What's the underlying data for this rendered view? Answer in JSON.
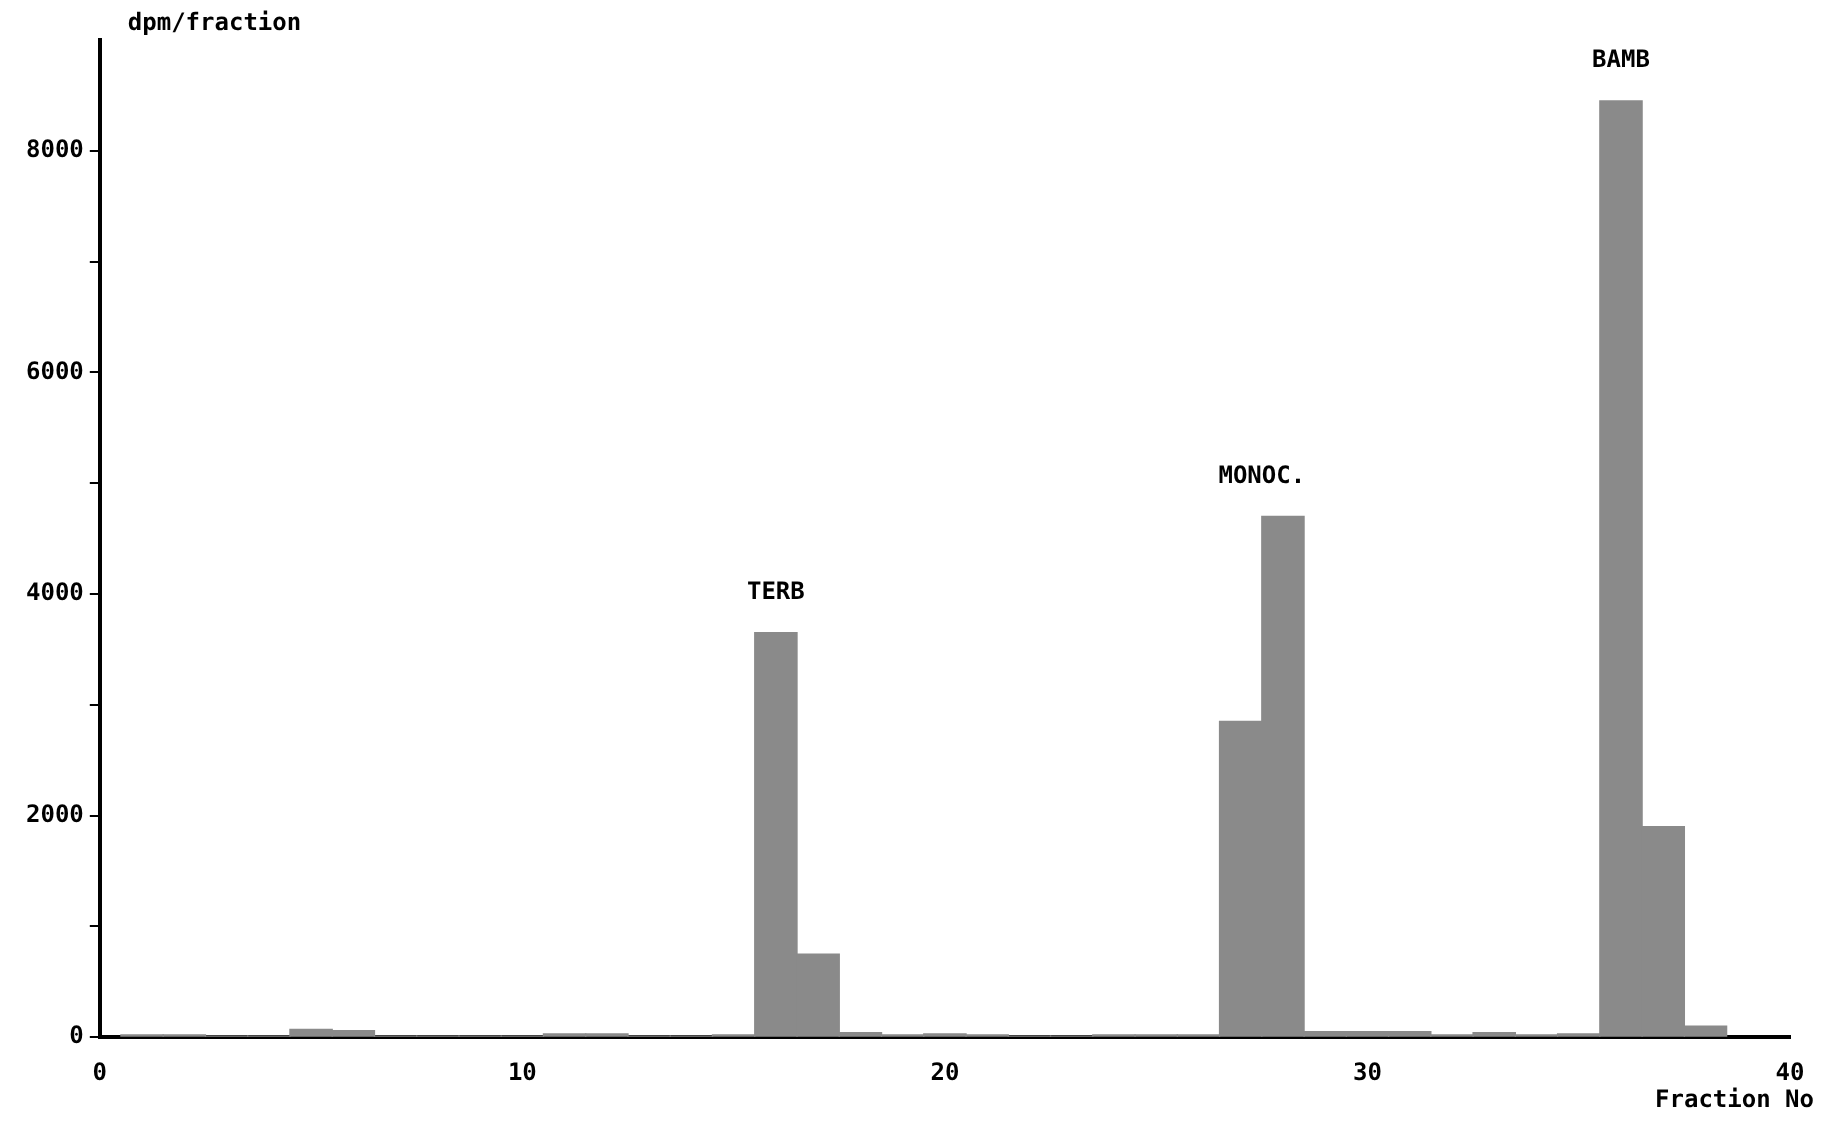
{
  "chart_data": {
    "type": "histogram",
    "ylabel": "dpm/fraction",
    "xlabel": "Fraction No",
    "bins": [
      0.5,
      1.5,
      2.5,
      3.5,
      4.5,
      5.5,
      6.5,
      7.5,
      8.5,
      9.5,
      10.5,
      11.5,
      12.5,
      13.5,
      14.5,
      15.5,
      16.5,
      17.5,
      18.5,
      19.5,
      20.5,
      21.5,
      22.5,
      23.5,
      24.5,
      25.5,
      26.5,
      27.5,
      28.5,
      29.5,
      30.5,
      31.5,
      32.5,
      33.5,
      34.5,
      35.5,
      36.5,
      37.5,
      38.5
    ],
    "values": [
      20,
      20,
      10,
      10,
      70,
      60,
      10,
      10,
      10,
      10,
      30,
      30,
      10,
      10,
      20,
      3650,
      750,
      40,
      20,
      30,
      20,
      10,
      10,
      20,
      20,
      20,
      2850,
      4700,
      50,
      50,
      50,
      20,
      40,
      20,
      30,
      8450,
      1900,
      100
    ],
    "color": "#8a8a8a",
    "xlim": [
      0,
      40
    ],
    "xticks": [
      0,
      10,
      20,
      30,
      40
    ],
    "ylim": [
      0,
      9000
    ],
    "yticks": [
      0,
      {
        "value": 1000,
        "label": null
      },
      2000,
      {
        "value": 3000,
        "label": null
      },
      4000,
      {
        "value": 5000,
        "label": null
      },
      6000,
      {
        "value": 7000,
        "label": null
      },
      8000
    ],
    "grid": false,
    "legend": false,
    "annotations": [
      {
        "text": "TERB",
        "x": 16,
        "y": 3650
      },
      {
        "text": "MONOC.",
        "x": 27.5,
        "y": 4700
      },
      {
        "text": "BAMB",
        "x": 36,
        "y": 8450
      }
    ]
  }
}
